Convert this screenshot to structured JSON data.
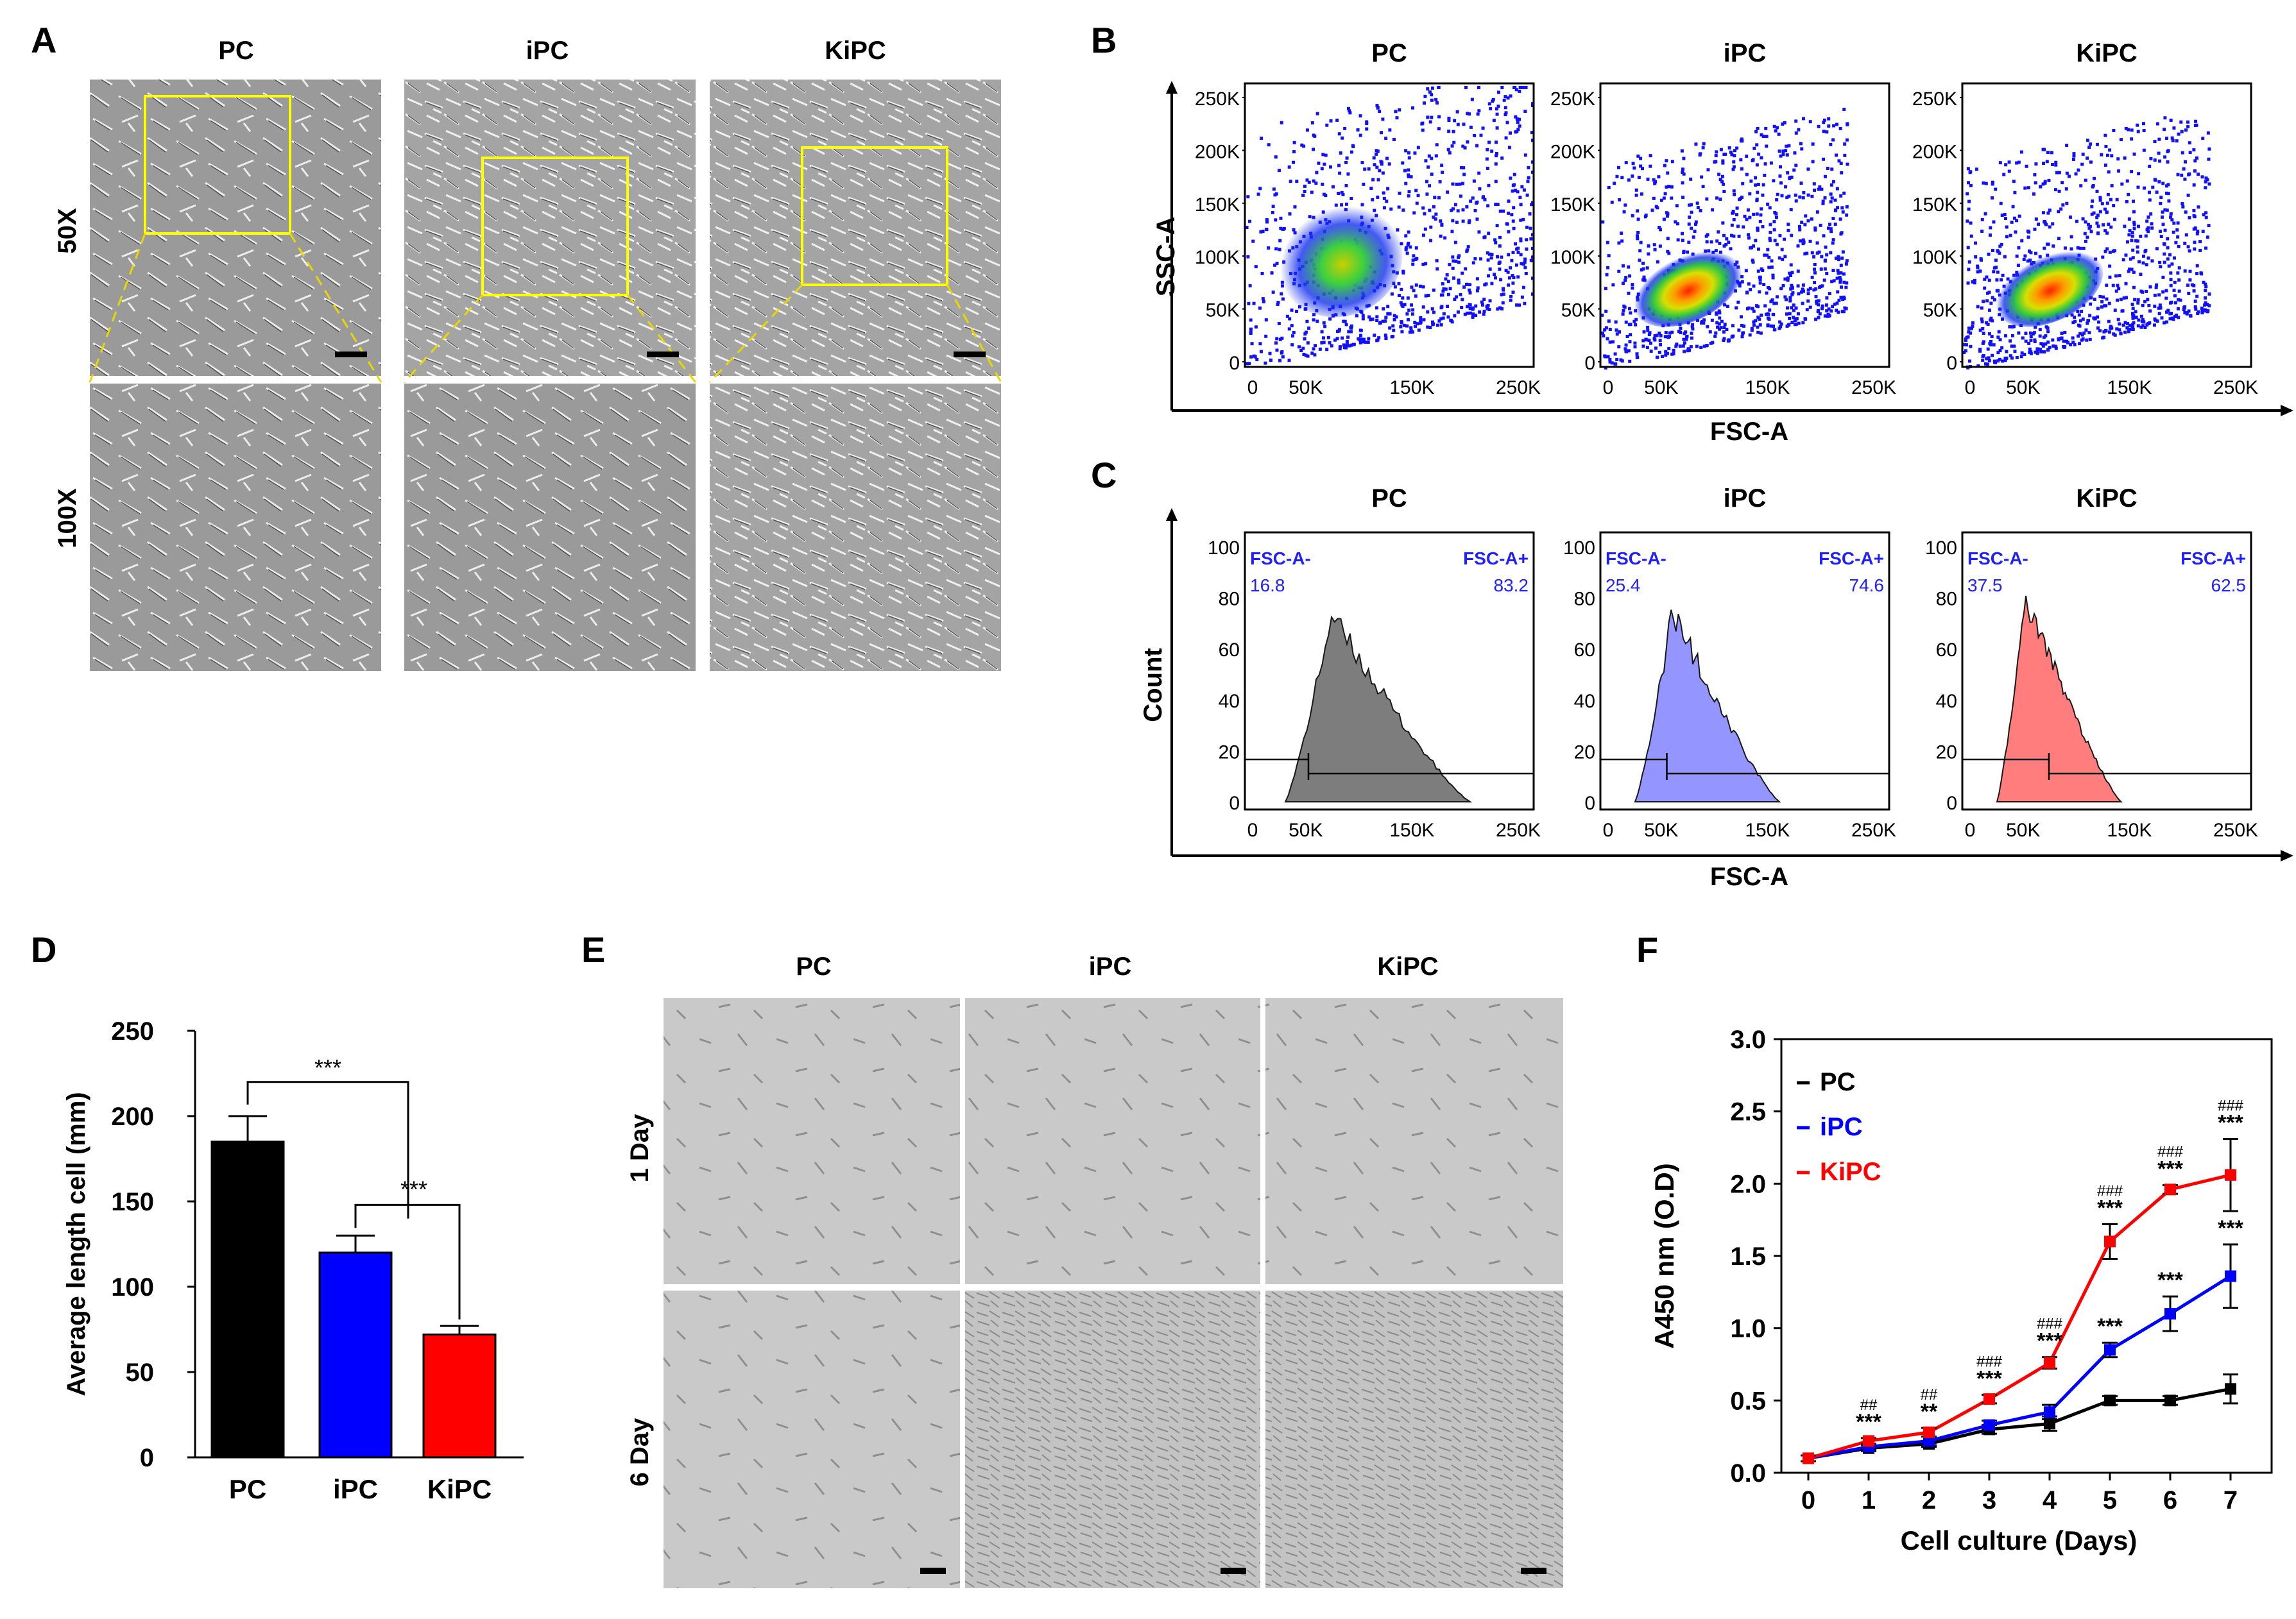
{
  "panels": {
    "A": {
      "letter": "A",
      "columns": [
        "PC",
        "iPC",
        "KiPC"
      ],
      "rows": [
        "50X",
        "100X"
      ]
    },
    "B": {
      "letter": "B",
      "columns": [
        "PC",
        "iPC",
        "KiPC"
      ],
      "y_label": "SSC-A",
      "x_label": "FSC-A",
      "y_ticks": [
        "250K",
        "200K",
        "150K",
        "100K",
        "50K",
        "0"
      ],
      "x_ticks": [
        "0",
        "50K",
        "150K",
        "250K"
      ]
    },
    "C": {
      "letter": "C",
      "columns": [
        "PC",
        "iPC",
        "KiPC"
      ],
      "y_label": "Count",
      "x_label": "FSC-A",
      "y_ticks": [
        "100",
        "80",
        "60",
        "40",
        "20",
        "0"
      ],
      "x_ticks": [
        "0",
        "50K",
        "150K",
        "250K"
      ],
      "gate_neg_label": "FSC-A-",
      "gate_pos_label": "FSC-A+",
      "gates": [
        {
          "neg": "16.8",
          "pos": "83.2",
          "color": "#6f6f6f"
        },
        {
          "neg": "25.4",
          "pos": "74.6",
          "color": "#8a8aff"
        },
        {
          "neg": "37.5",
          "pos": "62.5",
          "color": "#ff7070"
        }
      ]
    },
    "D": {
      "letter": "D"
    },
    "E": {
      "letter": "E",
      "columns": [
        "PC",
        "iPC",
        "KiPC"
      ],
      "rows": [
        "1 Day",
        "6 Day"
      ]
    },
    "F": {
      "letter": "F"
    }
  },
  "chart_data": [
    {
      "panel": "D",
      "type": "bar",
      "categories": [
        "PC",
        "iPC",
        "KiPC"
      ],
      "values": [
        185,
        120,
        72
      ],
      "errors": [
        15,
        10,
        5
      ],
      "colors": [
        "#000000",
        "#0000ff",
        "#ff0000"
      ],
      "ylabel": "Average length cell (mm)",
      "ylim": [
        0,
        250
      ],
      "yticks": [
        "0",
        "50",
        "100",
        "150",
        "200",
        "250"
      ],
      "significance": [
        {
          "pair": [
            "PC",
            "KiPC"
          ],
          "label": "***"
        },
        {
          "pair": [
            "iPC",
            "KiPC"
          ],
          "label": "***"
        }
      ]
    },
    {
      "panel": "F",
      "type": "line",
      "x": [
        0,
        1,
        2,
        3,
        4,
        5,
        6,
        7
      ],
      "xticks": [
        "0",
        "1",
        "2",
        "3",
        "4",
        "5",
        "6",
        "7"
      ],
      "xlabel": "Cell culture (Days)",
      "ylabel": "A450 nm (O.D)",
      "ylim": [
        0,
        3.0
      ],
      "yticks": [
        "0.0",
        "0.5",
        "1.0",
        "1.5",
        "2.0",
        "2.5",
        "3.0"
      ],
      "series": [
        {
          "name": "PC",
          "color": "#000000",
          "values": [
            0.1,
            0.17,
            0.2,
            0.3,
            0.34,
            0.5,
            0.5,
            0.58
          ],
          "errors": [
            0.02,
            0.02,
            0.02,
            0.03,
            0.05,
            0.03,
            0.03,
            0.1
          ]
        },
        {
          "name": "iPC",
          "color": "#0000ff",
          "values": [
            0.1,
            0.18,
            0.22,
            0.33,
            0.42,
            0.85,
            1.1,
            1.36
          ],
          "errors": [
            0.02,
            0.02,
            0.03,
            0.03,
            0.05,
            0.05,
            0.12,
            0.22
          ]
        },
        {
          "name": "KiPC",
          "color": "#ff0000",
          "values": [
            0.1,
            0.22,
            0.28,
            0.51,
            0.76,
            1.6,
            1.96,
            2.06
          ],
          "errors": [
            0.02,
            0.02,
            0.03,
            0.03,
            0.04,
            0.12,
            0.03,
            0.25
          ]
        }
      ],
      "annotations": [
        {
          "x": 1,
          "stars": "***",
          "hashes": "##"
        },
        {
          "x": 2,
          "stars": "**",
          "hashes": "##"
        },
        {
          "x": 3,
          "stars": "***",
          "hashes": "###"
        },
        {
          "x": 4,
          "stars": "***",
          "hashes": "###"
        },
        {
          "x": 5,
          "stars": "***",
          "hashes": "###"
        },
        {
          "x": 6,
          "stars": "***",
          "hashes": "###"
        },
        {
          "x": 7,
          "stars": "***",
          "hashes": "###"
        }
      ],
      "ipc_annotations": [
        {
          "x": 5,
          "stars": "***"
        },
        {
          "x": 6,
          "stars": "***"
        },
        {
          "x": 7,
          "stars": "***"
        }
      ]
    }
  ]
}
